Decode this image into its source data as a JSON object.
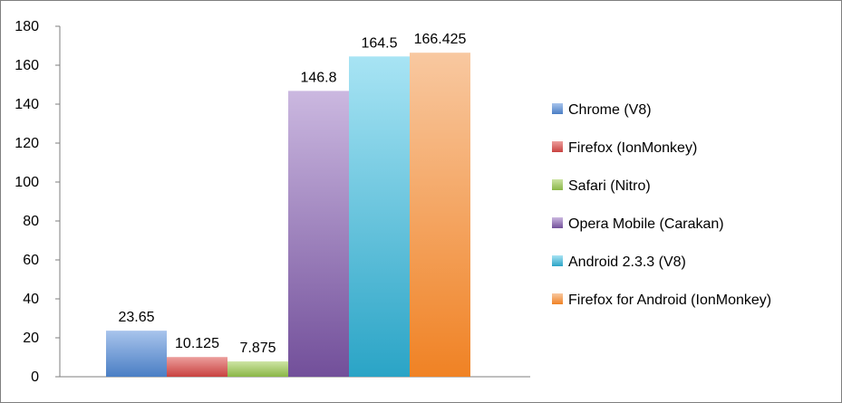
{
  "chart_data": {
    "type": "bar",
    "title": "",
    "xlabel": "",
    "ylabel": "",
    "ylim": [
      0,
      180
    ],
    "yticks": [
      0,
      20,
      40,
      60,
      80,
      100,
      120,
      140,
      160,
      180
    ],
    "grid": false,
    "legend_position": "right",
    "series": [
      {
        "name": "Chrome (V8)",
        "value": 23.65,
        "label": "23.65",
        "color": "#4a7ec4",
        "color_light": "#a8c4ec"
      },
      {
        "name": "Firefox (IonMonkey)",
        "value": 10.125,
        "label": "10.125",
        "color": "#c84240",
        "color_light": "#ec9e9c"
      },
      {
        "name": "Safari (Nitro)",
        "value": 7.875,
        "label": "7.875",
        "color": "#8ab646",
        "color_light": "#cde4a4"
      },
      {
        "name": "Opera Mobile (Carakan)",
        "value": 146.8,
        "label": "146.8",
        "color": "#724f9a",
        "color_light": "#cbb8e0"
      },
      {
        "name": "Android 2.3.3 (V8)",
        "value": 164.5,
        "label": "164.5",
        "color": "#2aa4c6",
        "color_light": "#a8e4f4"
      },
      {
        "name": "Firefox for Android (IonMonkey)",
        "value": 166.425,
        "label": "166.425",
        "color": "#f08224",
        "color_light": "#f8c8a0"
      }
    ]
  }
}
